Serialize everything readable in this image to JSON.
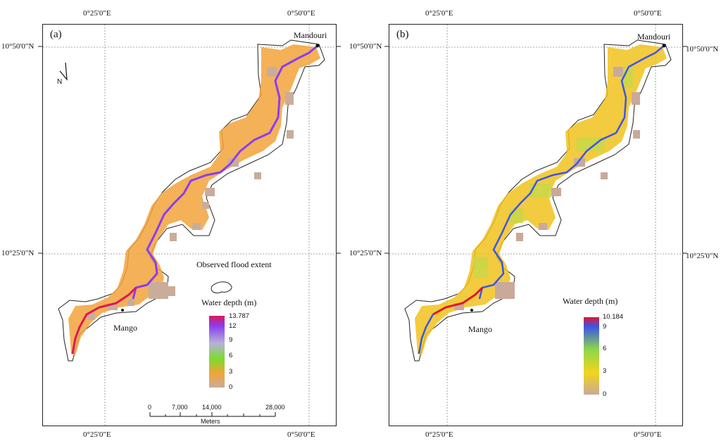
{
  "panels": [
    {
      "label": "(a)",
      "coords": {
        "top_lon_1": "0°25'0\"E",
        "top_lon_2": "0°50'0\"E",
        "bottom_lon_1": "0°25'0\"E",
        "bottom_lon_2": "0°50'0\"E",
        "left_lat_1": "10°50'0\"N",
        "left_lat_2": "10°25'0\"N"
      },
      "places": {
        "upstream": "Mandouri",
        "downstream": "Mango"
      },
      "observed_extent_label": "Observed flood extent",
      "legend": {
        "title": "Water depth (m)",
        "ticks": [
          "13.787",
          "12",
          "9",
          "6",
          "3",
          "0"
        ],
        "colors": [
          "#e0155a",
          "#8a3df0",
          "#b8b0d8",
          "#7bdc2e",
          "#f2a33a",
          "#c9ad9a"
        ]
      },
      "scalebar": {
        "ticks": [
          "0",
          "7,000",
          "14,000",
          "28,000"
        ],
        "unit": "Meters"
      },
      "north": "N"
    },
    {
      "label": "(b)",
      "coords": {
        "top_lon_1": "0°25'0\"E",
        "top_lon_2": "0°50'0\"E",
        "bottom_lon_1": "0°25'0\"E",
        "bottom_lon_2": "0°50'0\"E",
        "left_lat_1": "10°50'0\"N",
        "left_lat_2": "10°25'0\"N",
        "right_lat_1": "10°50'0\"N",
        "right_lat_2": "10°25'0\"N"
      },
      "places": {
        "upstream": "Mandouri",
        "downstream": "Mango"
      },
      "legend": {
        "title": "Water depth (m)",
        "ticks": [
          "10.184",
          "9",
          "6",
          "3",
          "0"
        ],
        "colors": [
          "#e0152f",
          "#3b55e6",
          "#8fd64a",
          "#f1d51c",
          "#c9a99a"
        ]
      }
    }
  ]
}
